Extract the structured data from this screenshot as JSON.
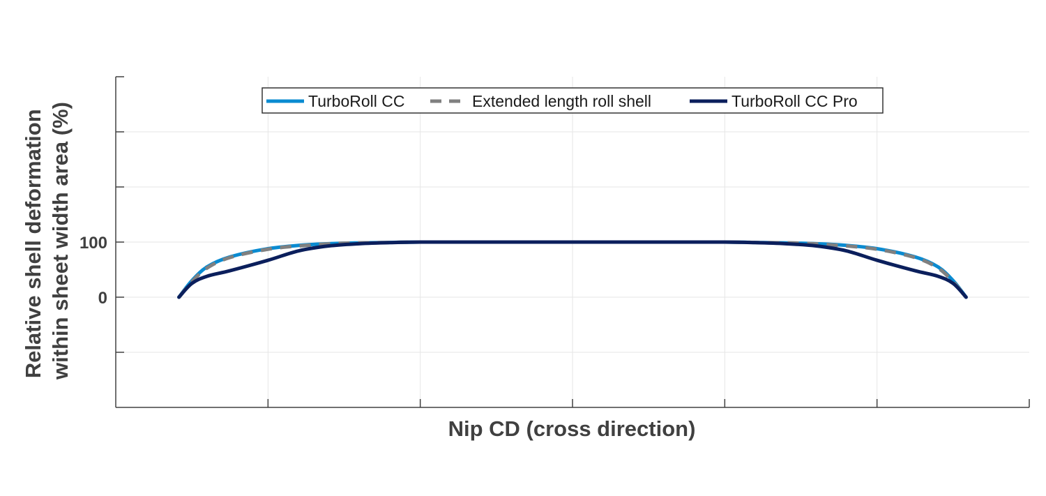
{
  "chart_data": {
    "type": "line",
    "title": "",
    "xlabel": "Nip CD (cross direction)",
    "ylabel_lines": [
      "Relative shell deformation",
      "within sheet width area (%)"
    ],
    "xlim": [
      0,
      12
    ],
    "ylim": [
      -200,
      400
    ],
    "xticks": [
      2,
      4,
      6,
      8,
      10
    ],
    "yticks": [
      -100,
      0,
      100,
      200,
      300
    ],
    "ytick_labels": [
      {
        "value": 100,
        "label": "100"
      },
      {
        "value": 0,
        "label": "0"
      }
    ],
    "grid": true,
    "legend": {
      "placement": "top-center",
      "orientation": "horizontal"
    },
    "series": [
      {
        "name": "TurboRoll CC",
        "color": "#0a8bd1",
        "style": "solid",
        "x": [
          0.83,
          1.0,
          1.2,
          1.5,
          2.0,
          2.5,
          3.0,
          3.5,
          4.0,
          5.0,
          6.0,
          7.0,
          8.0,
          8.5,
          9.0,
          9.5,
          10.0,
          10.5,
          10.8,
          11.0,
          11.17
        ],
        "y": [
          0,
          30,
          55,
          73,
          88,
          95,
          98,
          99,
          100,
          100,
          100,
          100,
          100,
          99,
          98,
          95,
          88,
          73,
          55,
          30,
          0
        ]
      },
      {
        "name": "Extended length roll shell",
        "color": "#808080",
        "style": "dashed",
        "x": [
          0.83,
          1.0,
          1.2,
          1.5,
          2.0,
          2.5,
          3.0,
          3.5,
          4.0,
          5.0,
          6.0,
          7.0,
          8.0,
          8.5,
          9.0,
          9.5,
          10.0,
          10.5,
          10.8,
          11.0,
          11.17
        ],
        "y": [
          0,
          28,
          53,
          72,
          87,
          94,
          98,
          99,
          100,
          100,
          100,
          100,
          100,
          99,
          98,
          94,
          87,
          72,
          53,
          28,
          0
        ]
      },
      {
        "name": "TurboRoll CC Pro",
        "color": "#0b1f5c",
        "style": "solid",
        "x": [
          0.83,
          1.0,
          1.2,
          1.5,
          2.0,
          2.4,
          2.8,
          3.2,
          3.6,
          4.0,
          5.0,
          6.0,
          7.0,
          8.0,
          8.4,
          8.8,
          9.2,
          9.6,
          10.0,
          10.5,
          10.8,
          11.0,
          11.17
        ],
        "y": [
          0,
          25,
          38,
          48,
          67,
          84,
          93,
          97,
          99,
          100,
          100,
          100,
          100,
          100,
          99,
          97,
          93,
          84,
          67,
          48,
          38,
          25,
          0
        ]
      }
    ]
  }
}
